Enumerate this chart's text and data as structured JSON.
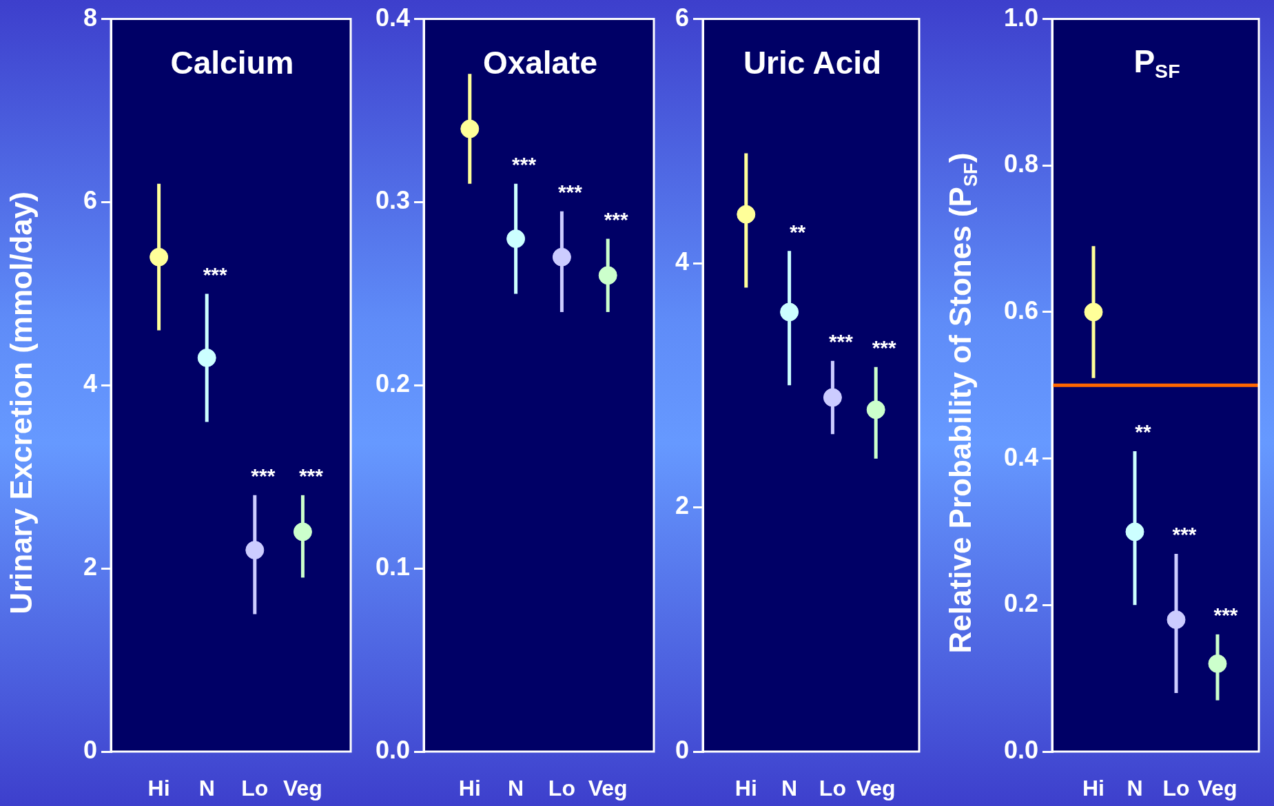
{
  "chart_data": [
    {
      "type": "scatter",
      "title": "Calcium",
      "ylabel": "Urinary Excretion (mmol/day)",
      "categories": [
        "Hi",
        "N",
        "Lo",
        "Veg"
      ],
      "series": [
        {
          "colors": [
            "#ffff99",
            "#ccffff",
            "#ccccff",
            "#ccffcc"
          ],
          "values": [
            5.4,
            4.3,
            2.2,
            2.4
          ],
          "errors": [
            [
              4.6,
              6.2
            ],
            [
              3.6,
              5.0
            ],
            [
              1.5,
              2.8
            ],
            [
              1.9,
              2.8
            ]
          ]
        }
      ],
      "ylim": [
        0,
        8
      ],
      "yticks": [
        0,
        2,
        4,
        6,
        8
      ],
      "grid": false,
      "legend": false,
      "marker": "circle",
      "annotations": [
        "***",
        "***",
        "***"
      ]
    },
    {
      "type": "scatter",
      "title": "Oxalate",
      "categories": [
        "Hi",
        "N",
        "Lo",
        "Veg"
      ],
      "series": [
        {
          "colors": [
            "#ffff99",
            "#ccffff",
            "#ccccff",
            "#ccffcc"
          ],
          "values": [
            0.34,
            0.28,
            0.27,
            0.26
          ],
          "errors": [
            [
              0.31,
              0.37
            ],
            [
              0.25,
              0.31
            ],
            [
              0.24,
              0.295
            ],
            [
              0.24,
              0.28
            ]
          ]
        }
      ],
      "ylim": [
        0,
        0.4
      ],
      "yticks": [
        {
          "value": 0,
          "label": "0.0"
        },
        {
          "value": 0.1,
          "label": "0.1"
        },
        {
          "value": 0.2,
          "label": "0.2"
        },
        {
          "value": 0.3,
          "label": "0.3"
        },
        {
          "value": 0.4,
          "label": "0.4"
        }
      ],
      "grid": false,
      "legend": false,
      "marker": "circle",
      "annotations": [
        "***",
        "***",
        "***"
      ]
    },
    {
      "type": "scatter",
      "title": "Uric Acid",
      "categories": [
        "Hi",
        "N",
        "Lo",
        "Veg"
      ],
      "series": [
        {
          "colors": [
            "#ffff99",
            "#ccffff",
            "#ccccff",
            "#ccffcc"
          ],
          "values": [
            4.4,
            3.6,
            2.9,
            2.8
          ],
          "errors": [
            [
              3.8,
              4.9
            ],
            [
              3.0,
              4.1
            ],
            [
              2.6,
              3.2
            ],
            [
              2.4,
              3.15
            ]
          ]
        }
      ],
      "ylim": [
        0,
        6
      ],
      "yticks": [
        0,
        2,
        4,
        6
      ],
      "grid": false,
      "legend": false,
      "marker": "circle",
      "annotations": [
        "**",
        "***",
        "***"
      ]
    },
    {
      "type": "scatter",
      "title": "P$_{SF}$",
      "ylabel": "Relative Probability of Stones (P$_{SF}$)",
      "categories": [
        "Hi",
        "N",
        "Lo",
        "Veg"
      ],
      "series": [
        {
          "colors": [
            "#ffff99",
            "#ccffff",
            "#ccccff",
            "#ccffcc"
          ],
          "values": [
            0.6,
            0.3,
            0.18,
            0.12
          ],
          "errors": [
            [
              0.51,
              0.69
            ],
            [
              0.2,
              0.41
            ],
            [
              0.08,
              0.27
            ],
            [
              0.07,
              0.16
            ]
          ]
        }
      ],
      "ylim": [
        0,
        1
      ],
      "yticks": [
        {
          "value": 0,
          "label": "0.0"
        },
        {
          "value": 0.2,
          "label": "0.2"
        },
        {
          "value": 0.4,
          "label": "0.4"
        },
        {
          "value": 0.6,
          "label": "0.6"
        },
        {
          "value": 0.8,
          "label": "0.8"
        },
        {
          "value": 1,
          "label": "1.0"
        }
      ],
      "grid": false,
      "legend": false,
      "marker": "circle",
      "ref_lines": [
        {
          "axis": "y",
          "value": 0.5,
          "color": "#ff6600"
        }
      ],
      "annotations": [
        "**",
        "***",
        "***"
      ]
    }
  ]
}
